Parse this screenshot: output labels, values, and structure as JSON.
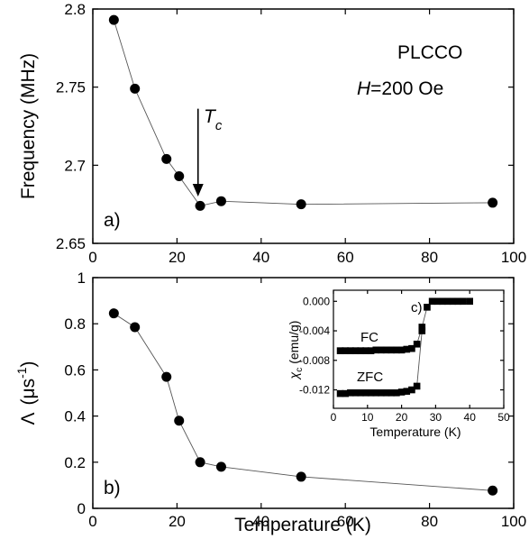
{
  "chart_data": [
    {
      "id": "a",
      "type": "line",
      "panel_label": "a)",
      "xlabel": "",
      "ylabel": "Frequency (MHz)",
      "xlim": [
        0,
        100
      ],
      "ylim": [
        2.65,
        2.8
      ],
      "x_ticks": [
        "0",
        "20",
        "40",
        "60",
        "80",
        "100"
      ],
      "y_ticks": [
        "2.65",
        "2.7",
        "2.75",
        "2.8"
      ],
      "annotations": {
        "sample": "PLCCO",
        "field_italic": "H",
        "field_rest": "=200 Oe",
        "tc_main": "T",
        "tc_sub": "c"
      },
      "arrow_x": 25,
      "arrow_y_from": 2.72,
      "arrow_y_to": 2.68,
      "series": [
        {
          "x": [
            5,
            10,
            17.5,
            20.5,
            25.5,
            30.5,
            49.5,
            95
          ],
          "y": [
            2.793,
            2.749,
            2.704,
            2.693,
            2.674,
            2.677,
            2.675,
            2.676
          ]
        }
      ]
    },
    {
      "id": "b",
      "type": "line",
      "panel_label": "b)",
      "xlabel": "Temperature (K)",
      "ylabel_lambda": "Λ",
      "ylabel_unit": "(μs",
      "ylabel_sup": "-1",
      "ylabel_close": ")",
      "xlim": [
        0,
        100
      ],
      "ylim": [
        0,
        1
      ],
      "x_ticks": [
        "0",
        "20",
        "40",
        "60",
        "80",
        "100"
      ],
      "y_ticks": [
        "0",
        "0.2",
        "0.4",
        "0.6",
        "0.8",
        "1"
      ],
      "series": [
        {
          "x": [
            5,
            10,
            17.5,
            20.5,
            25.5,
            30.5,
            49.5,
            95
          ],
          "y": [
            0.845,
            0.785,
            0.57,
            0.38,
            0.2,
            0.18,
            0.137,
            0.077
          ]
        }
      ]
    },
    {
      "id": "c",
      "type": "line",
      "panel_label": "c)",
      "xlabel": "Temperature (K)",
      "ylabel_chi": "χ",
      "ylabel_sub": "c",
      "ylabel_unit": "(emu/g)",
      "xlim": [
        0,
        50
      ],
      "ylim": [
        -0.0145,
        0.0015
      ],
      "x_ticks": [
        "0",
        "10",
        "20",
        "30",
        "40",
        "50"
      ],
      "y_ticks": [
        "0.000",
        "-0.004",
        "-0.008",
        "-0.012"
      ],
      "series": [
        {
          "name": "FC",
          "x": [
            2,
            3.5,
            5,
            6.5,
            8,
            9.5,
            11,
            12.5,
            14,
            15.5,
            17,
            18.5,
            20,
            21.5,
            23,
            24.5,
            26,
            27.5,
            29,
            30.5,
            32,
            33.5,
            35,
            36.5,
            38,
            40
          ],
          "y": [
            -0.0067,
            -0.0067,
            -0.0067,
            -0.0067,
            -0.0067,
            -0.0067,
            -0.0067,
            -0.0066,
            -0.0066,
            -0.0066,
            -0.0066,
            -0.0066,
            -0.0066,
            -0.0065,
            -0.0064,
            -0.0058,
            -0.0035,
            -0.0008,
            0.0,
            0.0,
            0.0,
            0.0,
            0.0,
            0.0,
            0.0,
            0.0
          ]
        },
        {
          "name": "ZFC",
          "x": [
            2,
            3.5,
            5,
            6.5,
            8,
            9.5,
            11,
            12.5,
            14,
            15.5,
            17,
            18.5,
            20,
            21.5,
            23,
            24.5,
            26
          ],
          "y": [
            -0.0125,
            -0.0125,
            -0.0124,
            -0.0124,
            -0.0124,
            -0.0124,
            -0.0124,
            -0.0124,
            -0.0124,
            -0.0124,
            -0.0124,
            -0.0124,
            -0.0123,
            -0.0122,
            -0.012,
            -0.0115,
            -0.004
          ]
        }
      ]
    }
  ]
}
